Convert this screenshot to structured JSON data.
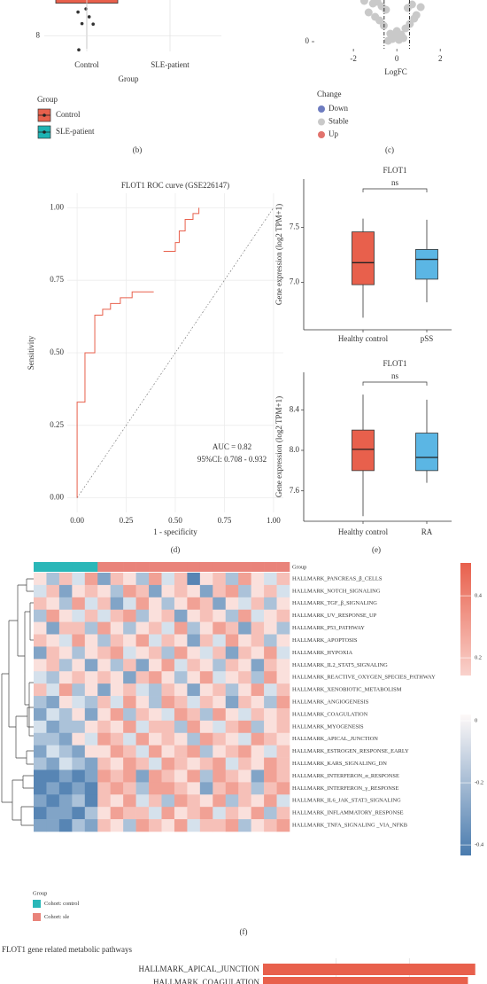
{
  "chart_data": [
    {
      "type": "box",
      "categories": [
        "Control",
        "SLE-patient"
      ],
      "xlabel": "Group",
      "ylim": [
        7.7,
        8.68
      ],
      "yticks": [
        8
      ],
      "grid": true,
      "boxes": [
        {
          "min": 7.75,
          "q1": 8.62
        }
      ],
      "points": [
        [
          8.45,
          8.36,
          8.23,
          8.22,
          8.51,
          7.73
        ]
      ],
      "colors": [
        "#E8604C",
        "#1DB3B3"
      ],
      "legend_title": "Group",
      "caption": "(b)"
    },
    {
      "type": "scatter",
      "xlabel": "LogFC",
      "xlim": [
        -3.8,
        3.95
      ],
      "xticks": [
        -2,
        0,
        2
      ],
      "ylim": [
        -0.8,
        4.7
      ],
      "yticks": [
        0
      ],
      "thresholds": [
        -0.585,
        0.585
      ],
      "legend_title": "Change",
      "series": [
        {
          "name": "Down",
          "color": "#6E7CC0",
          "x": [],
          "values": []
        },
        {
          "name": "Stable",
          "color": "#C9C9C9",
          "x": [
            -0.4,
            -0.2,
            0.1,
            0.3,
            -0.1,
            0.2,
            -0.3,
            0.0,
            0.4,
            -0.6,
            0.6,
            -0.8,
            0.8,
            -1.0,
            0.9,
            -1.3,
            -0.5,
            0.5,
            -0.7,
            0.7,
            -1.1,
            1.1,
            -0.9,
            -1.5
          ],
          "values": [
            0.1,
            0.3,
            0.2,
            0.4,
            0.6,
            0.8,
            0.9,
            1.2,
            1.5,
            1.8,
            2.0,
            2.4,
            2.6,
            2.8,
            3.0,
            3.3,
            3.6,
            3.8,
            4.0,
            4.2,
            4.3,
            3.9,
            4.5,
            4.6
          ]
        },
        {
          "name": "Up",
          "color": "#E2736D",
          "x": [],
          "values": []
        }
      ],
      "caption": "(c)"
    },
    {
      "type": "line",
      "title": "FLOT1 ROC curve (GSE226147)",
      "xlabel": "1 - specificity",
      "ylabel": "Sensitivity",
      "xlim": [
        -0.05,
        1.05
      ],
      "ylim": [
        -0.05,
        1.05
      ],
      "xticks": [
        {
          "value": 0,
          "label": "0.00"
        },
        0.25,
        {
          "value": 0.5,
          "label": "0.50"
        },
        0.75,
        {
          "value": 1,
          "label": "1.00"
        }
      ],
      "yticks": [
        {
          "value": 0,
          "label": "0.00"
        },
        0.25,
        {
          "value": 0.5,
          "label": "0.50"
        },
        0.75,
        {
          "value": 1,
          "label": "1.00"
        }
      ],
      "grid": true,
      "color": "#E8604C",
      "x": [
        0,
        0,
        0.04,
        0.04,
        0.09,
        0.09,
        0.13,
        0.13,
        0.17,
        0.17,
        0.22,
        0.22,
        0.28,
        0.28,
        0.39,
        null,
        0.44,
        0.5,
        0.5,
        0.52,
        0.52,
        0.55,
        0.55,
        0.59,
        0.59,
        0.62,
        0.62
      ],
      "values": [
        0,
        0.33,
        0.33,
        0.5,
        0.5,
        0.63,
        0.63,
        0.65,
        0.65,
        0.67,
        0.67,
        0.69,
        0.69,
        0.71,
        0.71,
        null,
        0.85,
        0.85,
        0.88,
        0.88,
        0.92,
        0.92,
        0.96,
        0.96,
        0.98,
        0.98,
        1.0
      ],
      "annotations": [
        "AUC = 0.82",
        "95%CI: 0.708 - 0.932"
      ],
      "caption": "(d)"
    },
    {
      "type": "box",
      "title": "FLOT1",
      "annotation": "ns",
      "ylabel": "Gene expression (log2 TPM+1)",
      "categories": [
        "Healthy control",
        "pSS"
      ],
      "ylim": [
        6.57,
        7.94
      ],
      "yticks": [
        {
          "value": 7,
          "label": "7.0"
        },
        7.5
      ],
      "boxes": [
        {
          "min": 6.68,
          "q1": 6.98,
          "median": 7.18,
          "q3": 7.46,
          "max": 7.58
        },
        {
          "min": 6.82,
          "q1": 7.03,
          "median": 7.21,
          "q3": 7.3,
          "max": 7.57
        }
      ],
      "colors": [
        "#E8604C",
        "#5BB6E4"
      ]
    },
    {
      "type": "box",
      "title": "FLOT1",
      "annotation": "ns",
      "ylabel": "Gene expression (log2 TPM+1)",
      "categories": [
        "Healthy control",
        "RA"
      ],
      "ylim": [
        7.3,
        8.77
      ],
      "yticks": [
        7.6,
        {
          "value": 8,
          "label": "8.0"
        },
        8.4
      ],
      "boxes": [
        {
          "min": 7.35,
          "q1": 7.8,
          "median": 8.01,
          "q3": 8.2,
          "max": 8.55
        },
        {
          "min": 7.68,
          "q1": 7.8,
          "median": 7.93,
          "q3": 8.17,
          "max": 8.5
        }
      ],
      "colors": [
        "#E8604C",
        "#5BB6E4"
      ],
      "caption": "(e)"
    },
    {
      "type": "heatmap",
      "annotation_label": "Group",
      "rows": [
        "HALLMARK_PANCREAS_β_CELLS",
        "HALLMARK_NOTCH_SIGNALING",
        "HALLMARK_TGF_β_SIGNALING",
        "HALLMARK_UV_RESPONSE_UP",
        "HALLMARK_P53_PATHWAY",
        "HALLMARK_APOPTOSIS",
        "HALLMARK_HYPOXIA",
        "HALLMARK_IL2_STAT5_SIGNALING",
        "HALLMARK_REACTIVE_OXYGEN_SPECIES_PATHWAY",
        "HALLMARK_XENOBIOTIC_METABOLISM",
        "HALLMARK_ANGIOGENESIS",
        "HALLMARK_COAGULATION",
        "HALLMARK_MYOGENESIS",
        "HALLMARK_APICAL_JUNCTION",
        "HALLMARK_ESTROGEN_RESPONSE_EARLY",
        "HALLMARK_KARS_SIGNALING_DN",
        "HALLMARK_INTERFERON_α_RESPONSE",
        "HALLMARK_INTERFERON_γ_RESPONSE",
        "HALLMARK_IL6_JAK_STAT3_SIGNALING",
        "HALLMARK_INFLAMMATORY_RESPONSE",
        "HALLMARK_TNFA_SIGNALING _VIA_NFKB"
      ],
      "values": [
        [
          0.1,
          -0.2,
          0.2,
          -0.1,
          0.3,
          -0.3,
          0.2,
          0.1,
          -0.2,
          0.3,
          -0.1,
          0.2,
          -0.4,
          0.1,
          0.2,
          -0.2,
          0.3,
          0.1,
          -0.1,
          0.2
        ],
        [
          -0.1,
          0.2,
          -0.3,
          0.1,
          0.2,
          0.1,
          -0.2,
          0.3,
          0.2,
          -0.3,
          0.1,
          0.2,
          0.1,
          -0.3,
          0.2,
          0.3,
          -0.2,
          0.1,
          0.2,
          -0.1
        ],
        [
          0.2,
          0.1,
          -0.2,
          0.3,
          -0.1,
          0.2,
          -0.3,
          -0.1,
          0.3,
          0.1,
          -0.2,
          0.1,
          0.3,
          0.2,
          -0.3,
          0.1,
          -0.1,
          0.2,
          -0.2,
          0.1
        ],
        [
          -0.2,
          0.3,
          0.1,
          -0.1,
          0.2,
          -0.1,
          0.2,
          0.3,
          -0.2,
          0.1,
          0.2,
          -0.3,
          0.1,
          0.2,
          0.1,
          -0.2,
          0.3,
          -0.1,
          0.1,
          0.2
        ],
        [
          0.1,
          -0.3,
          0.2,
          0.2,
          -0.2,
          0.3,
          0.1,
          -0.2,
          0.1,
          0.2,
          -0.1,
          0.3,
          -0.2,
          0.1,
          0.3,
          0.2,
          -0.3,
          0.2,
          0.1,
          -0.2
        ],
        [
          0.2,
          0.1,
          -0.1,
          0.3,
          0.1,
          -0.2,
          0.2,
          0.1,
          0.3,
          -0.1,
          0.2,
          0.1,
          -0.3,
          0.2,
          -0.1,
          0.3,
          0.1,
          0.2,
          -0.2,
          0.1
        ],
        [
          -0.3,
          0.2,
          0.1,
          -0.2,
          0.1,
          0.2,
          0.3,
          -0.1,
          0.1,
          0.2,
          -0.2,
          0.3,
          0.1,
          -0.1,
          0.2,
          -0.3,
          0.2,
          0.1,
          0.3,
          -0.1
        ],
        [
          0.1,
          0.2,
          -0.2,
          0.1,
          -0.3,
          0.1,
          -0.2,
          0.2,
          -0.3,
          0.1,
          0.3,
          -0.1,
          0.2,
          0.1,
          -0.2,
          0.2,
          0.1,
          -0.3,
          0.2,
          0.1
        ],
        [
          -0.1,
          -0.2,
          0.1,
          0.2,
          0.1,
          0.2,
          0.1,
          -0.3,
          0.2,
          0.3,
          0.1,
          -0.2,
          0.1,
          0.3,
          -0.1,
          0.1,
          0.2,
          -0.2,
          0.3,
          0.1
        ],
        [
          0.2,
          -0.1,
          0.3,
          -0.2,
          0.1,
          -0.3,
          0.1,
          0.2,
          -0.1,
          -0.2,
          0.2,
          0.1,
          -0.3,
          0.1,
          0.2,
          -0.2,
          0.1,
          0.3,
          -0.1,
          0.2
        ],
        [
          -0.2,
          -0.3,
          0.1,
          -0.1,
          -0.2,
          0.2,
          -0.1,
          0.3,
          0.1,
          -0.2,
          0.3,
          0.2,
          -0.1,
          0.2,
          0.1,
          -0.3,
          0.2,
          0.1,
          -0.2,
          0.3
        ],
        [
          -0.3,
          -0.1,
          -0.2,
          0.1,
          -0.3,
          0.1,
          0.3,
          -0.2,
          0.2,
          0.1,
          -0.1,
          0.3,
          0.2,
          -0.2,
          0.3,
          0.1,
          -0.1,
          0.2,
          0.1,
          0.2
        ],
        [
          -0.1,
          -0.3,
          -0.2,
          -0.2,
          0.1,
          0.2,
          0.1,
          0.3,
          -0.1,
          0.2,
          0.2,
          -0.2,
          0.3,
          0.1,
          -0.1,
          0.2,
          0.3,
          -0.2,
          0.1,
          0.2
        ],
        [
          -0.2,
          -0.2,
          -0.3,
          0.1,
          -0.1,
          0.3,
          0.2,
          -0.1,
          0.3,
          0.1,
          0.2,
          0.1,
          -0.2,
          0.3,
          0.2,
          0.1,
          -0.1,
          0.3,
          0.2,
          0.1
        ],
        [
          -0.3,
          -0.1,
          -0.2,
          -0.3,
          0.1,
          0.1,
          0.3,
          0.2,
          -0.1,
          0.3,
          0.1,
          0.2,
          0.3,
          -0.2,
          0.1,
          0.2,
          0.3,
          0.1,
          -0.1,
          0.2
        ],
        [
          -0.2,
          -0.3,
          -0.1,
          -0.2,
          -0.3,
          0.2,
          0.1,
          0.3,
          0.2,
          -0.1,
          0.3,
          0.2,
          0.1,
          0.2,
          0.3,
          -0.1,
          0.2,
          0.1,
          0.3,
          0.2
        ],
        [
          -0.4,
          -0.4,
          -0.3,
          -0.4,
          -0.3,
          0.3,
          0.2,
          0.3,
          -0.3,
          0.3,
          0.2,
          0.1,
          0.3,
          -0.2,
          0.3,
          0.2,
          0.1,
          -0.3,
          0.3,
          0.2
        ],
        [
          -0.4,
          -0.3,
          -0.4,
          -0.3,
          -0.4,
          0.2,
          0.3,
          0.2,
          -0.2,
          0.3,
          0.3,
          0.2,
          0.1,
          -0.3,
          0.2,
          0.3,
          0.2,
          -0.2,
          0.2,
          0.3
        ],
        [
          -0.3,
          -0.4,
          -0.3,
          -0.2,
          -0.4,
          0.2,
          0.1,
          0.3,
          -0.1,
          0.2,
          -0.2,
          0.3,
          0.2,
          0.1,
          0.3,
          -0.2,
          0.2,
          0.1,
          0.3,
          -0.1
        ],
        [
          -0.4,
          -0.3,
          -0.3,
          -0.4,
          -0.2,
          0.1,
          0.3,
          0.2,
          0.2,
          -0.1,
          0.3,
          0.1,
          0.2,
          0.3,
          -0.1,
          0.2,
          0.1,
          0.3,
          -0.2,
          0.2
        ],
        [
          -0.3,
          -0.3,
          -0.4,
          -0.2,
          -0.3,
          0.2,
          0.1,
          -0.2,
          0.3,
          0.2,
          0.1,
          0.3,
          -0.1,
          0.2,
          0.2,
          0.3,
          -0.2,
          0.1,
          0.2,
          0.3
        ]
      ],
      "column_groups": [
        0,
        0,
        0,
        0,
        0,
        1,
        1,
        1,
        1,
        1,
        1,
        1,
        1,
        1,
        1,
        1,
        1,
        1,
        1,
        1
      ],
      "groups": [
        "Cohort: control",
        "Cohort: sle"
      ],
      "group_colors": [
        "#2AB7B8",
        "#E9837A"
      ],
      "colorscale": {
        "low": "#2B65A0",
        "mid": "#FFFFFF",
        "high": "#E8604C"
      },
      "legend_ticks": [
        0.4,
        0.2,
        0,
        -0.2,
        -0.4
      ],
      "color_ranges": [
        [
          0.143,
          0.506
        ],
        [
          -0.434,
          0.02
        ]
      ],
      "legend_title": "Group",
      "caption": "(f)"
    },
    {
      "type": "hbar",
      "title": "FLOT1 gene related metabolic pathways",
      "categories": [
        "HALLMARK_APICAL_JUNCTION",
        "HALLMARK_COAGULATION"
      ],
      "values": [
        0.29,
        0.28
      ],
      "color": "#E8604C",
      "xlim": [
        0,
        0.3
      ],
      "xticks": [
        0.1,
        0.2
      ],
      "grid": true
    }
  ]
}
